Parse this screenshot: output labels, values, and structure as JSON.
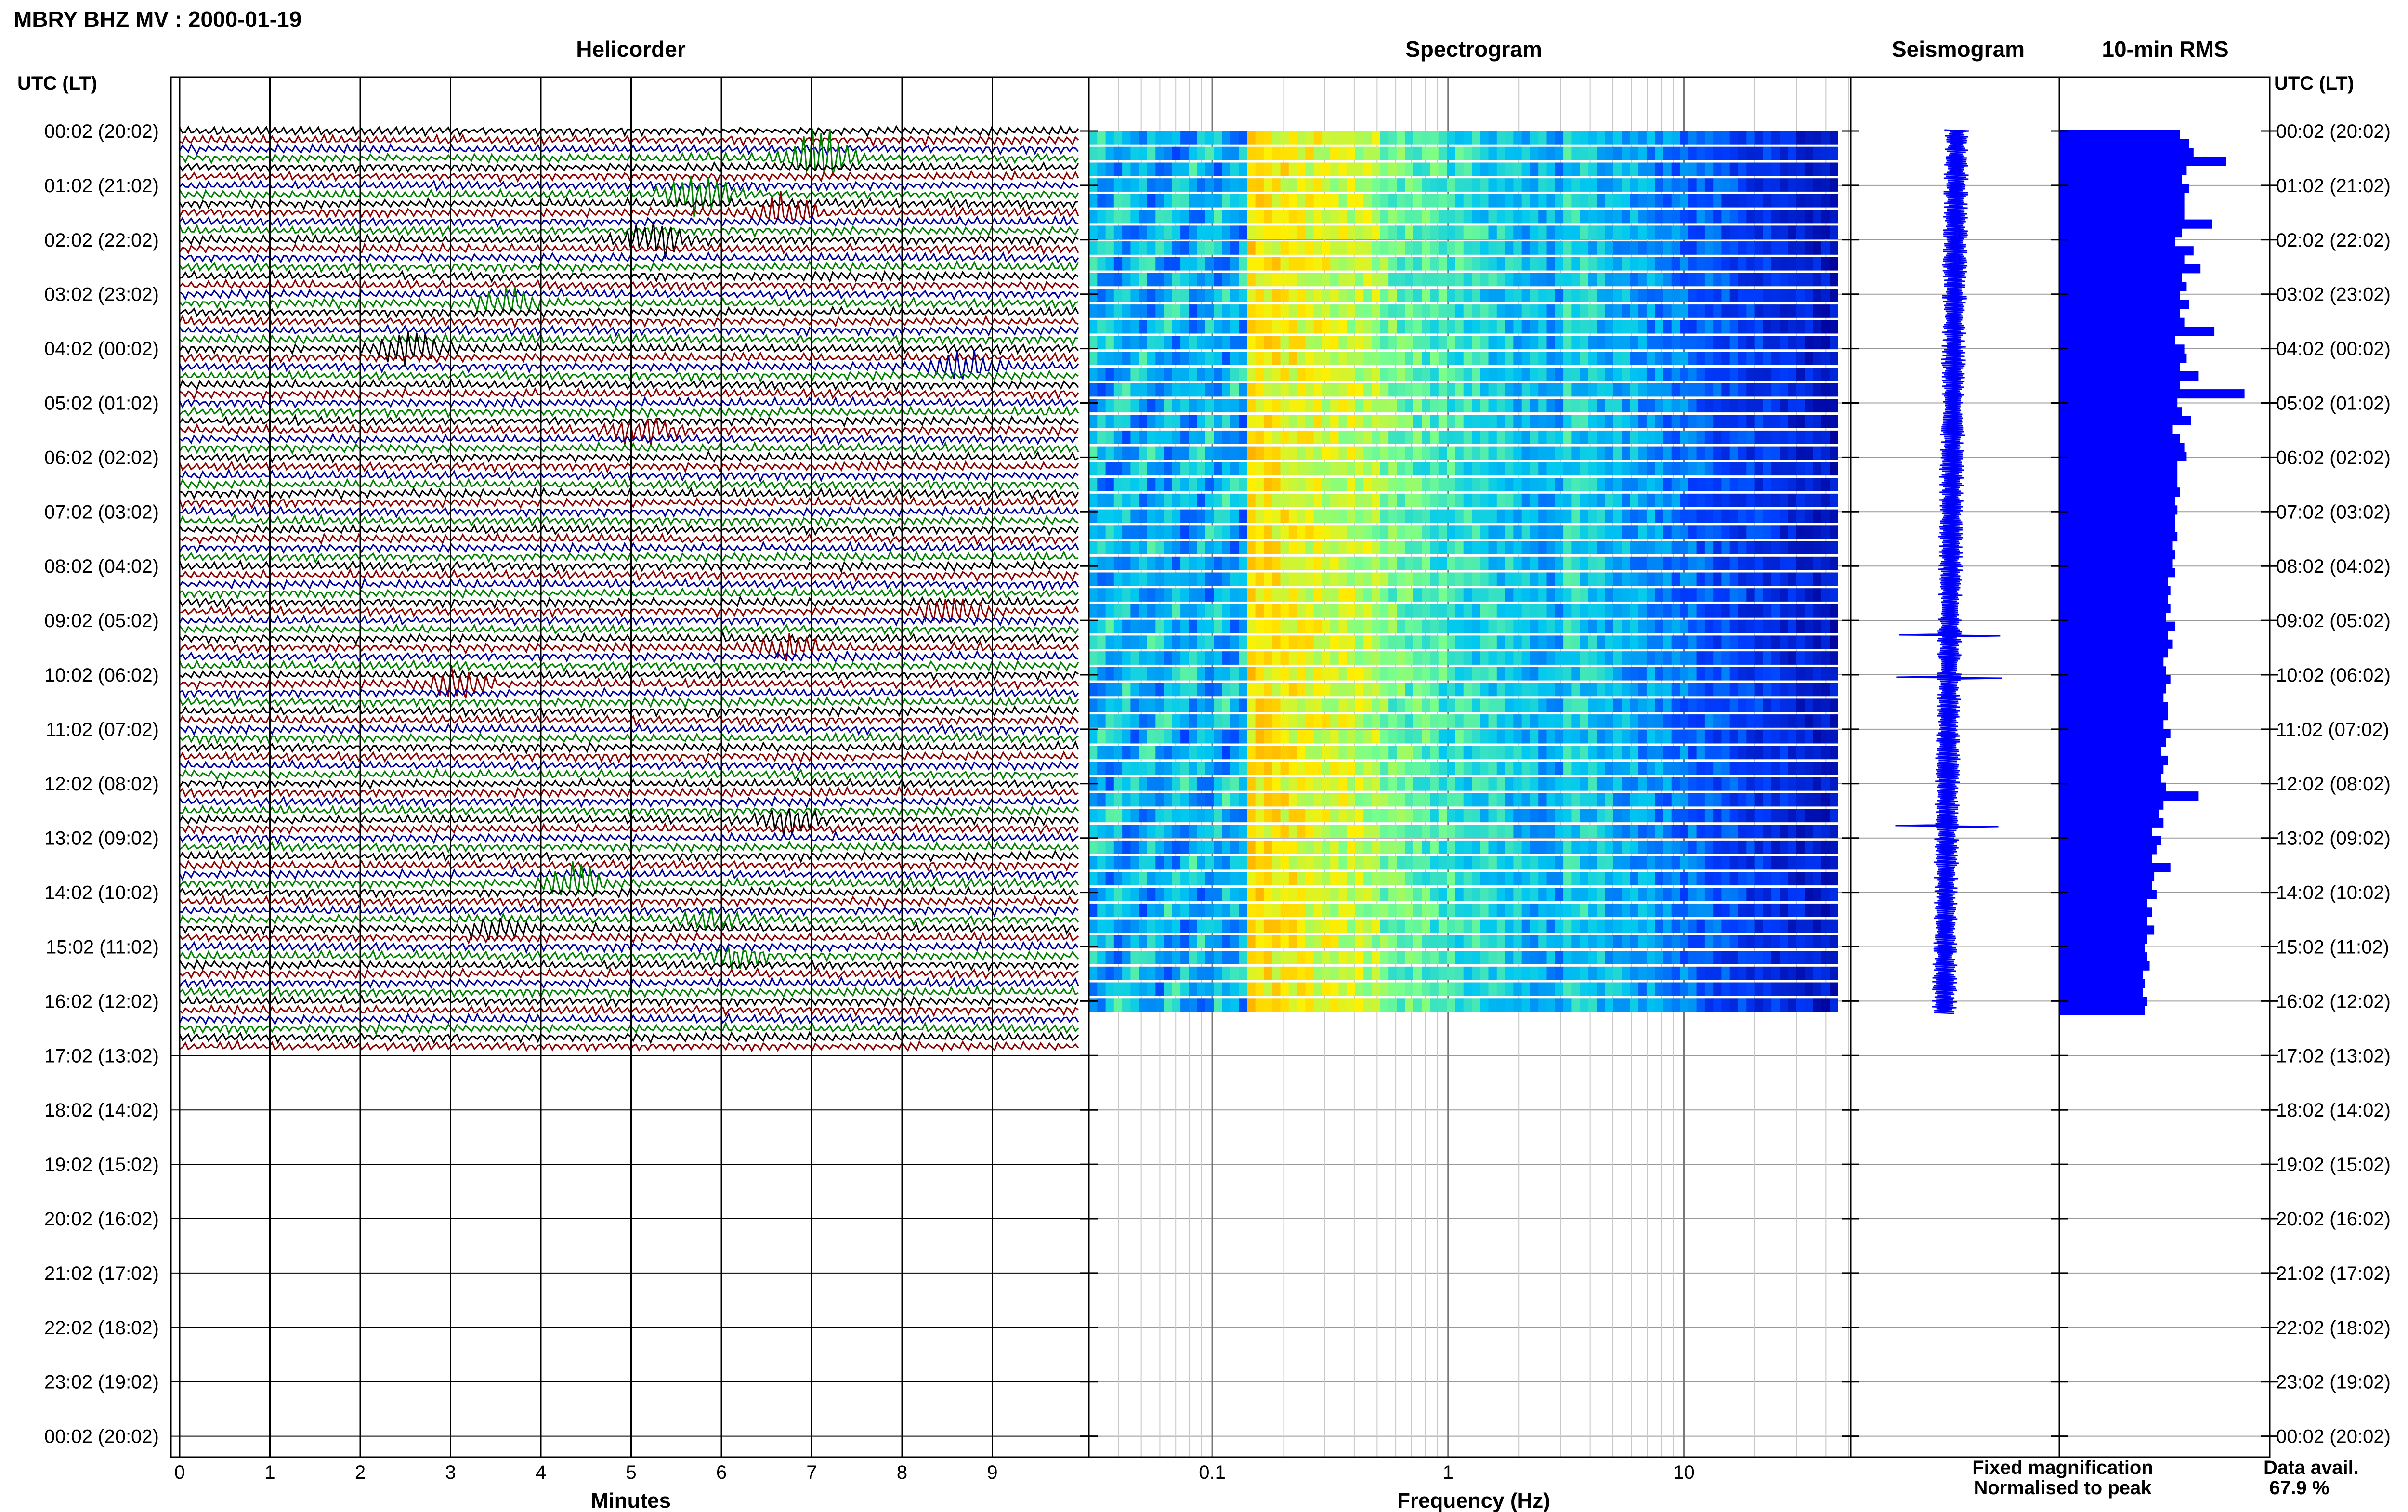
{
  "station_title": "MBRY BHZ MV : 2000-01-19",
  "panels": {
    "helicorder": "Helicorder",
    "spectrogram": "Spectrogram",
    "seismogram": "Seismogram",
    "rms": "10-min RMS"
  },
  "axis_header_left": "UTC (LT)",
  "axis_header_right": "UTC (LT)",
  "time_labels": [
    "00:02 (20:02)",
    "01:02 (21:02)",
    "02:02 (22:02)",
    "03:02 (23:02)",
    "04:02 (00:02)",
    "05:02 (01:02)",
    "06:02 (02:02)",
    "07:02 (03:02)",
    "08:02 (04:02)",
    "09:02 (05:02)",
    "10:02 (06:02)",
    "11:02 (07:02)",
    "12:02 (08:02)",
    "13:02 (09:02)",
    "14:02 (10:02)",
    "15:02 (11:02)",
    "16:02 (12:02)",
    "17:02 (13:02)",
    "18:02 (14:02)",
    "19:02 (15:02)",
    "20:02 (16:02)",
    "21:02 (17:02)",
    "22:02 (18:02)",
    "23:02 (19:02)",
    "00:02 (20:02)"
  ],
  "helicorder_xlabel": "Minutes",
  "helicorder_ticks": [
    "0",
    "1",
    "2",
    "3",
    "4",
    "5",
    "6",
    "7",
    "8",
    "9"
  ],
  "spectrogram_xlabel": "Frequency (Hz)",
  "spectrogram_ticks": [
    "0.1",
    "1",
    "10"
  ],
  "legend": {
    "fixed": "Fixed magnification",
    "normalised": "Normalised to peak",
    "fixed_color": "#1010ff",
    "normalised_color": "#ff1010"
  },
  "data_avail_label": "Data avail.",
  "data_avail_value": "67.9 %",
  "colors": {
    "trace_cycle": [
      "#000000",
      "#8b0000",
      "#0000a0",
      "#008000"
    ],
    "rms_bar": "#0000ff"
  },
  "chart_data": {
    "type": "helicorder",
    "rows_with_data": 17,
    "total_rows": 25,
    "rms_values": [
      0.52,
      0.56,
      0.58,
      0.72,
      0.55,
      0.53,
      0.56,
      0.54,
      0.54,
      0.54,
      0.66,
      0.53,
      0.5,
      0.58,
      0.54,
      0.61,
      0.53,
      0.55,
      0.52,
      0.56,
      0.52,
      0.54,
      0.67,
      0.5,
      0.54,
      0.55,
      0.52,
      0.6,
      0.52,
      0.8,
      0.51,
      0.53,
      0.57,
      0.49,
      0.52,
      0.54,
      0.55,
      0.51,
      0.51,
      0.51,
      0.52,
      0.5,
      0.51,
      0.5,
      0.5,
      0.51,
      0.49,
      0.5,
      0.49,
      0.5,
      0.47,
      0.48,
      0.47,
      0.48,
      0.46,
      0.5,
      0.47,
      0.49,
      0.47,
      0.45,
      0.46,
      0.48,
      0.46,
      0.45,
      0.47,
      0.47,
      0.45,
      0.48,
      0.46,
      0.44,
      0.47,
      0.45,
      0.44,
      0.46,
      0.6,
      0.45,
      0.43,
      0.45,
      0.4,
      0.44,
      0.42,
      0.4,
      0.48,
      0.41,
      0.4,
      0.42,
      0.38,
      0.4,
      0.38,
      0.41,
      0.38,
      0.37,
      0.38,
      0.39,
      0.36,
      0.37,
      0.36,
      0.38,
      0.37
    ]
  }
}
